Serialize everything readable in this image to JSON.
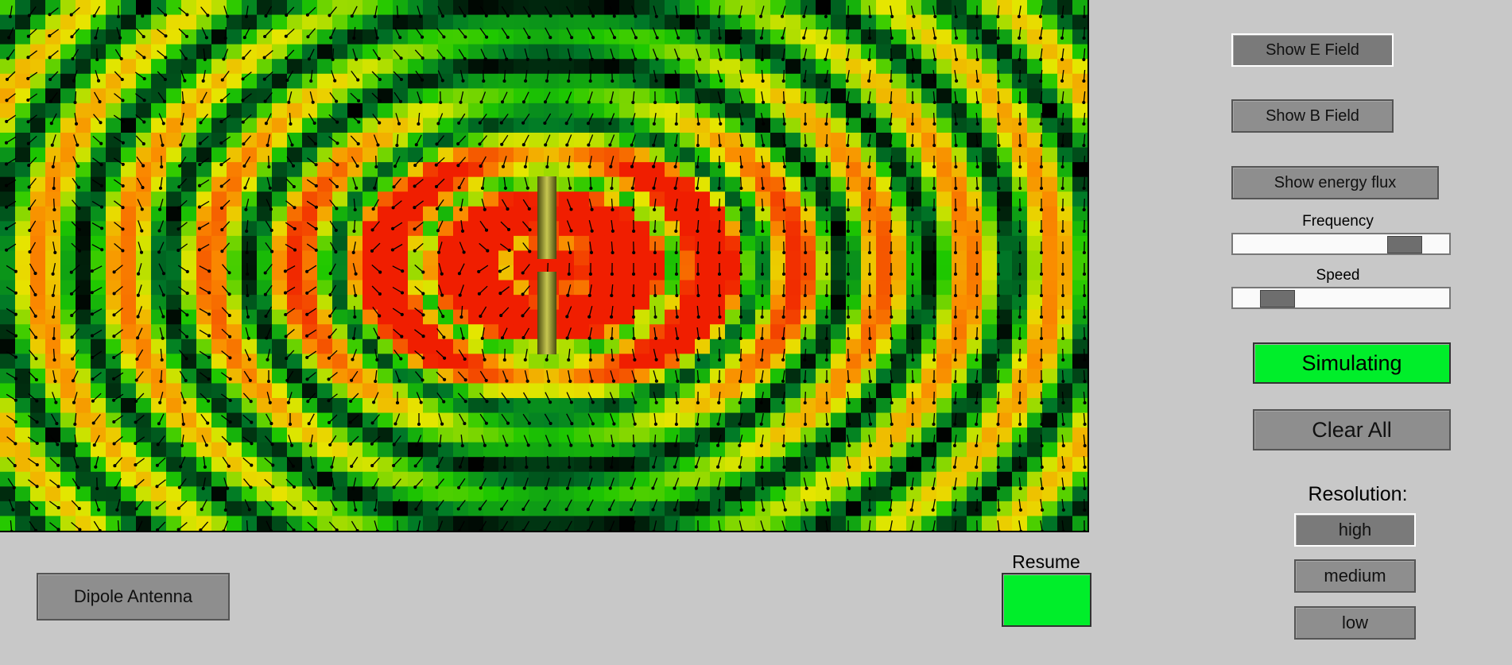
{
  "controls": {
    "show_e_field": "Show E Field",
    "show_b_field": "Show B Field",
    "show_energy_flux": "Show energy flux",
    "frequency_label": "Frequency",
    "frequency_level": 0.85,
    "speed_label": "Speed",
    "speed_level": 0.15,
    "simulating": "Simulating",
    "clear_all": "Clear All",
    "resolution_label": "Resolution:",
    "resolution_options": [
      "high",
      "medium",
      "low"
    ],
    "resolution_selected": "high"
  },
  "bottom": {
    "preset_button": "Dipole Antenna",
    "resume_label": "Resume"
  },
  "colors": {
    "background": "#c8c8c8",
    "simulating_green": "#00ee2a",
    "button_gray": "#8e8e8e"
  }
}
